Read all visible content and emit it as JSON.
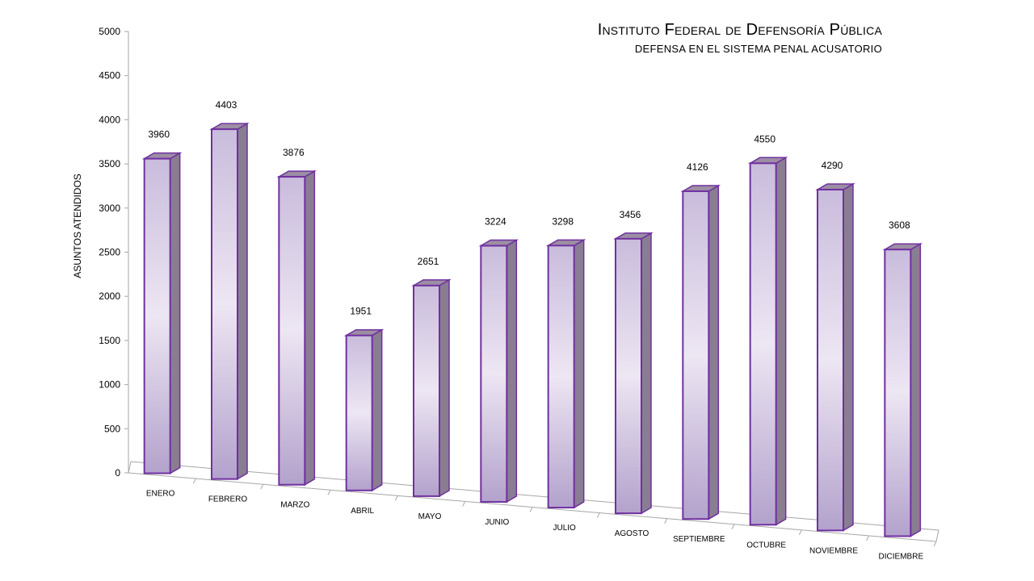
{
  "chart_data": {
    "type": "bar",
    "title": "Instituto Federal de Defensoría Pública",
    "subtitle": "DEFENSA EN EL SISTEMA PENAL ACUSATORIO",
    "ylabel": "ASUNTOS ATENDIDOS",
    "xlabel": "",
    "ylim": [
      0,
      5000
    ],
    "yticks": [
      0,
      500,
      1000,
      1500,
      2000,
      2500,
      3000,
      3500,
      4000,
      4500,
      5000
    ],
    "categories": [
      "ENERO",
      "FEBRERO",
      "MARZO",
      "ABRIL",
      "MAYO",
      "JUNIO",
      "JULIO",
      "AGOSTO",
      "SEPTIEMBRE",
      "OCTUBRE",
      "NOVIEMBRE",
      "DICIEMBRE"
    ],
    "values": [
      3960,
      4403,
      3876,
      1951,
      2651,
      3224,
      3298,
      3456,
      4126,
      4550,
      4290,
      3608
    ],
    "grid": false,
    "style": "3d-column",
    "colors": {
      "bar_face_light": "#ede6f3",
      "bar_face_dark": "#b3a2cc",
      "bar_outline": "#7030a0",
      "bar_side": "#8a7d92",
      "bar_top": "#9c8ea4",
      "axis": "#a6a6a6"
    }
  }
}
